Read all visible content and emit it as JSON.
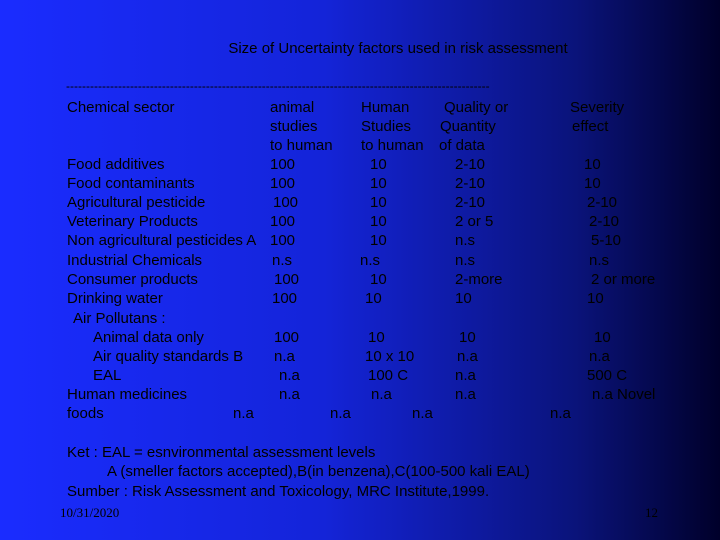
{
  "title": "Size of Uncertainty factors used in risk assessment",
  "divider": "----------------------------------------------------------------------------------------------------------",
  "header": {
    "col1": "Chemical sector",
    "col2": [
      "animal",
      "studies",
      "to human"
    ],
    "col3": [
      "Human",
      "Studies",
      "to human"
    ],
    "col4": [
      "Quality or",
      "Quantity",
      "of data"
    ],
    "col5": [
      "Severity",
      "effect"
    ]
  },
  "rows": [
    {
      "sector": "Food additives",
      "animal": "100",
      "human": "10",
      "quality": "2-10",
      "severity": "10"
    },
    {
      "sector": "Food contaminants",
      "animal": "100",
      "human": "10",
      "quality": "2-10",
      "severity": "10"
    },
    {
      "sector": "Agricultural pesticide",
      "animal": "100",
      "human": "10",
      "quality": "2-10",
      "severity": "2-10"
    },
    {
      "sector": "Veterinary Products",
      "animal": "100",
      "human": "10",
      "quality": "2 or 5",
      "severity": "2-10"
    },
    {
      "sector": "Non agricultural pesticides A",
      "animal": "100",
      "human": "10",
      "quality": "n.s",
      "severity": "5-10"
    },
    {
      "sector": "Industrial Chemicals",
      "animal": "n.s",
      "human": "n.s",
      "quality": "n.s",
      "severity": "n.s"
    },
    {
      "sector": "Consumer products",
      "animal": "100",
      "human": "10",
      "quality": "2-more",
      "severity": "2 or more"
    },
    {
      "sector": "Drinking water",
      "animal": "100",
      "human": "10",
      "quality": "10",
      "severity": "10"
    },
    {
      "sector": "Air Pollutans :",
      "animal": "",
      "human": "",
      "quality": "",
      "severity": ""
    },
    {
      "sector": "Animal data only",
      "animal": "100",
      "human": "10",
      "quality": "10",
      "severity": "10"
    },
    {
      "sector": "Air quality standards  B",
      "animal": "n.a",
      "human": "10 x 10",
      "quality": "n.a",
      "severity": "n.a"
    },
    {
      "sector": "EAL",
      "animal": "n.a",
      "human": "100 C",
      "quality": "n.a",
      "severity": "500 C"
    },
    {
      "sector": "Human medicines",
      "animal": "n.a",
      "human": "n.a",
      "quality": "n.a",
      "severity": "n.a Novel"
    },
    {
      "sector": "foods",
      "animal": "n.a",
      "human": "n.a",
      "quality": "n.a",
      "severity": "n.a"
    }
  ],
  "notes": [
    "Ket : EAL = esnvironmental assessment levels",
    "A (smeller factors accepted),B(in benzena),C(100-500 kali EAL)",
    "Sumber : Risk Assessment and Toxicology, MRC Institute,1999."
  ],
  "date": "10/31/2020",
  "page_number": "12"
}
